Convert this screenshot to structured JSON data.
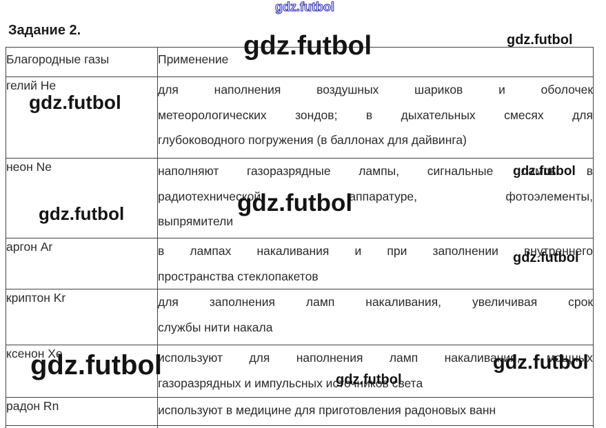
{
  "page": {
    "title": "Задание 2."
  },
  "watermark": {
    "text": "gdz.futbol",
    "accent_blue": "#3434c6",
    "color": "#141414"
  },
  "table": {
    "headers": [
      "Благородные газы",
      "Применение"
    ],
    "rows": [
      {
        "gas": "гелий He",
        "use": "для наполнения воздушных шариков и оболочек\nметеорологических зондов; в дыхательных смесях для\nглубоководного погружения (в баллонах для дайвинга)"
      },
      {
        "gas": "неон Ne",
        "use": "наполняют газоразрядные лампы, сигнальные лампы в\nрадиотехнической аппаратуре, фотоэлементы,\nвыпрямители"
      },
      {
        "gas": "аргон Ar",
        "use": "в лампах накаливания и при заполнении внутреннего\nпространства стеклопакетов"
      },
      {
        "gas": "криптон Kr",
        "use": "для заполнения ламп накаливания, увеличивая срок\nслужбы нити накала"
      },
      {
        "gas": "ксенон Xe",
        "use": "используют для наполнения ламп накаливания, мощных\nгазоразрядных и импульсных источников света"
      },
      {
        "gas": "радон Rn",
        "use": "используют в медицине для приготовления радоновых ванн"
      }
    ]
  }
}
